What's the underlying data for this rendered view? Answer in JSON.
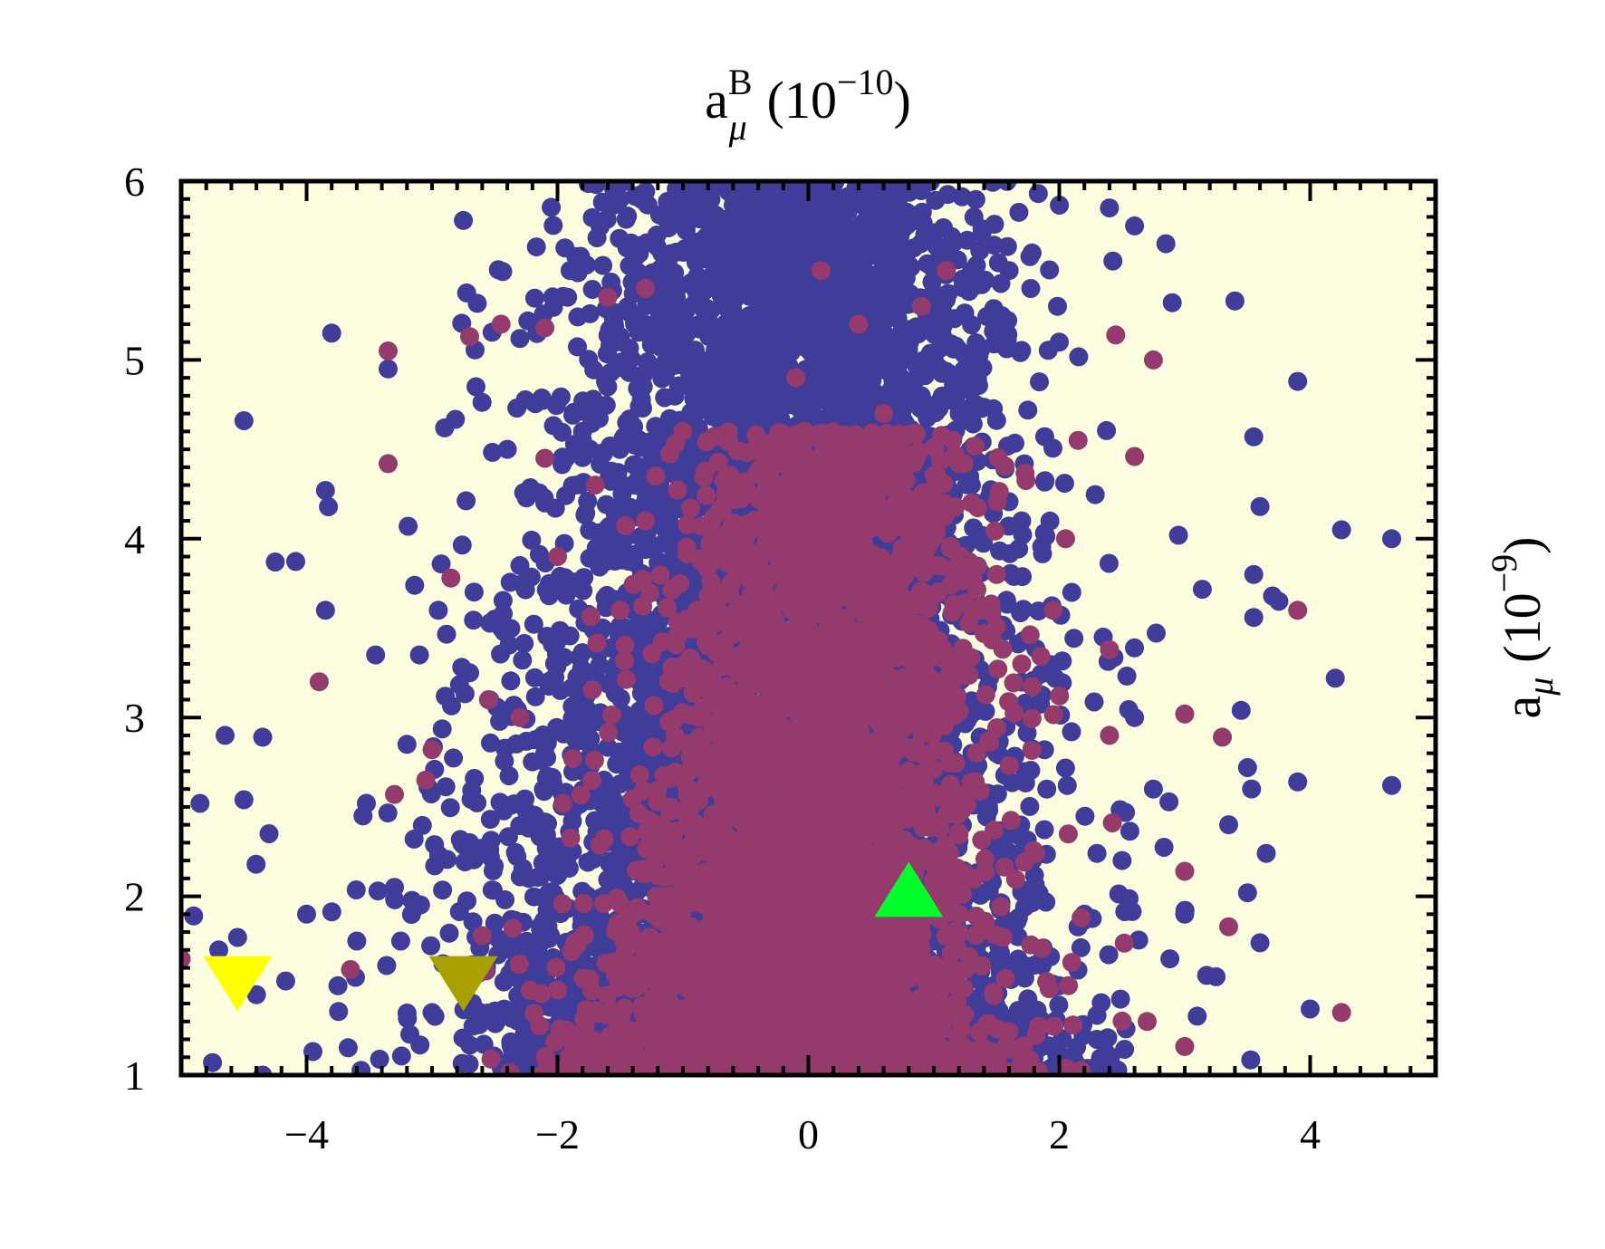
{
  "chart_data": {
    "type": "scatter",
    "title": "",
    "xlabel": {
      "base": "a",
      "sub": "μ",
      "sup": "B",
      "unit": "(10",
      "unit_exp": "−10",
      "unit_close": ")"
    },
    "ylabel": {
      "base": "a",
      "sub": "μ",
      "unit": "(10",
      "unit_exp": "−9",
      "unit_close": ")"
    },
    "xlim": [
      -5,
      5
    ],
    "ylim": [
      1,
      6
    ],
    "x_ticks": [
      -4,
      -2,
      0,
      2,
      4
    ],
    "x_tick_labels": [
      "−4",
      "−2",
      "0",
      "2",
      "4"
    ],
    "y_ticks": [
      1,
      2,
      3,
      4,
      5,
      6
    ],
    "y_tick_labels": [
      "1",
      "2",
      "3",
      "4",
      "5",
      "6"
    ],
    "grid": false,
    "legend": "none",
    "background_color": "#fdfde0",
    "series": [
      {
        "color": "#3f3c9a",
        "values_sample": [
          [
            -4.5,
            4.66
          ],
          [
            -4.25,
            3.87
          ],
          [
            -3.85,
            4.27
          ],
          [
            -3.8,
            5.15
          ],
          [
            -3.35,
            4.95
          ],
          [
            -2.65,
            4.85
          ],
          [
            -2.9,
            4.62
          ],
          [
            -2.4,
            4.5
          ],
          [
            -2.75,
            5.78
          ],
          [
            -2.3,
            5.12
          ],
          [
            -1.9,
            5.5
          ],
          [
            -1.5,
            5.9
          ],
          [
            -1.2,
            5.4
          ],
          [
            -0.8,
            5.92
          ],
          [
            -0.2,
            5.8
          ],
          [
            0.1,
            5.95
          ],
          [
            0.6,
            5.7
          ],
          [
            1.1,
            5.6
          ],
          [
            1.6,
            5.5
          ],
          [
            2.0,
            5.1
          ],
          [
            2.4,
            5.85
          ],
          [
            2.6,
            5.75
          ],
          [
            2.85,
            5.65
          ],
          [
            2.9,
            5.32
          ],
          [
            3.4,
            5.33
          ],
          [
            3.9,
            4.88
          ],
          [
            3.55,
            4.57
          ],
          [
            3.6,
            4.18
          ],
          [
            2.95,
            4.02
          ],
          [
            4.25,
            4.05
          ],
          [
            4.65,
            4.0
          ],
          [
            3.55,
            3.8
          ],
          [
            3.7,
            3.68
          ],
          [
            3.75,
            3.65
          ],
          [
            3.55,
            3.56
          ],
          [
            4.2,
            3.22
          ],
          [
            3.45,
            3.04
          ],
          [
            3.9,
            2.64
          ],
          [
            4.65,
            2.62
          ],
          [
            3.5,
            2.72
          ],
          [
            3.35,
            2.4
          ],
          [
            3.65,
            2.24
          ],
          [
            3.5,
            2.02
          ],
          [
            3.6,
            1.74
          ],
          [
            4.0,
            1.37
          ],
          [
            3.0,
            1.9
          ],
          [
            3.25,
            1.55
          ],
          [
            3.1,
            1.33
          ],
          [
            -4.85,
            2.52
          ],
          [
            -4.65,
            2.9
          ],
          [
            -4.5,
            2.54
          ],
          [
            -4.35,
            2.89
          ],
          [
            -4.3,
            2.35
          ],
          [
            -4.0,
            1.9
          ],
          [
            -4.9,
            1.89
          ],
          [
            -4.7,
            1.7
          ],
          [
            -4.55,
            1.77
          ],
          [
            -4.4,
            1.45
          ],
          [
            -4.75,
            1.07
          ],
          [
            -4.35,
            1.0
          ],
          [
            -3.6,
            1.75
          ],
          [
            -3.75,
            1.5
          ],
          [
            -3.25,
            1.75
          ],
          [
            -3.0,
            1.35
          ],
          [
            -3.3,
            2.05
          ],
          [
            -3.55,
            2.45
          ],
          [
            -3.2,
            2.85
          ],
          [
            -3.1,
            3.35
          ],
          [
            -2.95,
            3.6
          ],
          [
            -3.45,
            3.35
          ],
          [
            -3.85,
            3.6
          ],
          [
            -2.7,
            3.25
          ],
          [
            -2.5,
            3.55
          ],
          [
            -2.3,
            3.85
          ],
          [
            -2.1,
            4.2
          ],
          [
            -1.8,
            4.6
          ],
          [
            -1.6,
            4.85
          ],
          [
            -1.25,
            5.1
          ],
          [
            -0.9,
            4.7
          ],
          [
            -0.6,
            5.2
          ],
          [
            -0.3,
            4.5
          ],
          [
            0.2,
            5.0
          ],
          [
            0.5,
            4.4
          ],
          [
            0.9,
            4.8
          ],
          [
            1.3,
            4.3
          ],
          [
            1.7,
            4.1
          ],
          [
            2.1,
            3.7
          ],
          [
            2.35,
            3.45
          ],
          [
            2.6,
            3.0
          ],
          [
            2.75,
            2.6
          ],
          [
            2.5,
            2.2
          ],
          [
            2.2,
            1.9
          ],
          [
            2.0,
            1.5
          ],
          [
            2.3,
            1.2
          ],
          [
            1.8,
            1.1
          ],
          [
            -1.9,
            1.2
          ],
          [
            -2.2,
            1.5
          ],
          [
            -2.5,
            1.85
          ],
          [
            -2.7,
            2.3
          ],
          [
            -2.1,
            2.8
          ],
          [
            -1.8,
            3.2
          ],
          [
            -1.4,
            3.6
          ],
          [
            -1.0,
            4.0
          ],
          [
            -0.5,
            3.8
          ],
          [
            0.0,
            3.5
          ],
          [
            0.4,
            3.9
          ],
          [
            0.8,
            3.6
          ],
          [
            1.2,
            3.2
          ],
          [
            1.5,
            2.8
          ],
          [
            1.9,
            2.6
          ]
        ]
      },
      {
        "color": "#953a6d",
        "values_sample": [
          [
            -3.35,
            5.05
          ],
          [
            -3.35,
            4.42
          ],
          [
            -2.7,
            5.13
          ],
          [
            -2.45,
            5.2
          ],
          [
            -2.1,
            5.18
          ],
          [
            -2.1,
            4.45
          ],
          [
            -1.6,
            5.35
          ],
          [
            -1.3,
            5.4
          ],
          [
            -3.9,
            3.2
          ],
          [
            -3.65,
            1.59
          ],
          [
            -3.3,
            2.57
          ],
          [
            -3.0,
            2.82
          ],
          [
            -3.05,
            2.65
          ],
          [
            -2.85,
            3.78
          ],
          [
            -2.55,
            3.1
          ],
          [
            -2.6,
            1.78
          ],
          [
            -2.3,
            3.0
          ],
          [
            -2.0,
            3.9
          ],
          [
            -1.7,
            4.3
          ],
          [
            -1.5,
            3.6
          ],
          [
            -1.3,
            4.1
          ],
          [
            -1.0,
            4.6
          ],
          [
            -0.8,
            3.4
          ],
          [
            -0.5,
            3.9
          ],
          [
            -0.3,
            4.3
          ],
          [
            -0.1,
            4.9
          ],
          [
            0.1,
            5.5
          ],
          [
            0.4,
            5.2
          ],
          [
            0.6,
            4.7
          ],
          [
            0.9,
            5.3
          ],
          [
            1.1,
            5.5
          ],
          [
            1.15,
            4.55
          ],
          [
            1.3,
            4.2
          ],
          [
            1.5,
            3.8
          ],
          [
            1.7,
            3.3
          ],
          [
            1.95,
            3.6
          ],
          [
            2.05,
            4.0
          ],
          [
            2.15,
            4.55
          ],
          [
            2.45,
            5.14
          ],
          [
            2.6,
            4.46
          ],
          [
            2.75,
            5.0
          ],
          [
            3.9,
            3.6
          ],
          [
            2.4,
            3.38
          ],
          [
            3.0,
            3.02
          ],
          [
            3.3,
            2.89
          ],
          [
            2.4,
            2.9
          ],
          [
            3.0,
            2.14
          ],
          [
            3.35,
            1.83
          ],
          [
            3.0,
            1.16
          ],
          [
            4.25,
            1.35
          ],
          [
            2.7,
            1.3
          ],
          [
            2.1,
            1.63
          ],
          [
            -5.0,
            1.65
          ],
          [
            -0.8,
            1.5
          ],
          [
            -0.5,
            2.0
          ],
          [
            -0.2,
            1.3
          ],
          [
            0.1,
            2.4
          ],
          [
            0.3,
            1.7
          ],
          [
            0.6,
            2.2
          ],
          [
            -1.1,
            2.5
          ],
          [
            -1.4,
            1.9
          ],
          [
            -0.7,
            2.9
          ],
          [
            0.0,
            3.1
          ],
          [
            0.8,
            2.7
          ],
          [
            1.2,
            1.9
          ]
        ]
      }
    ],
    "markers": [
      {
        "shape": "triangle-down",
        "color": "#ffff00",
        "x": -4.55,
        "y": 1.55
      },
      {
        "shape": "triangle-down",
        "color": "#a8a000",
        "x": -2.75,
        "y": 1.55
      },
      {
        "shape": "triangle-up",
        "color": "#00ff2a",
        "x": 0.8,
        "y": 2.0
      }
    ]
  }
}
